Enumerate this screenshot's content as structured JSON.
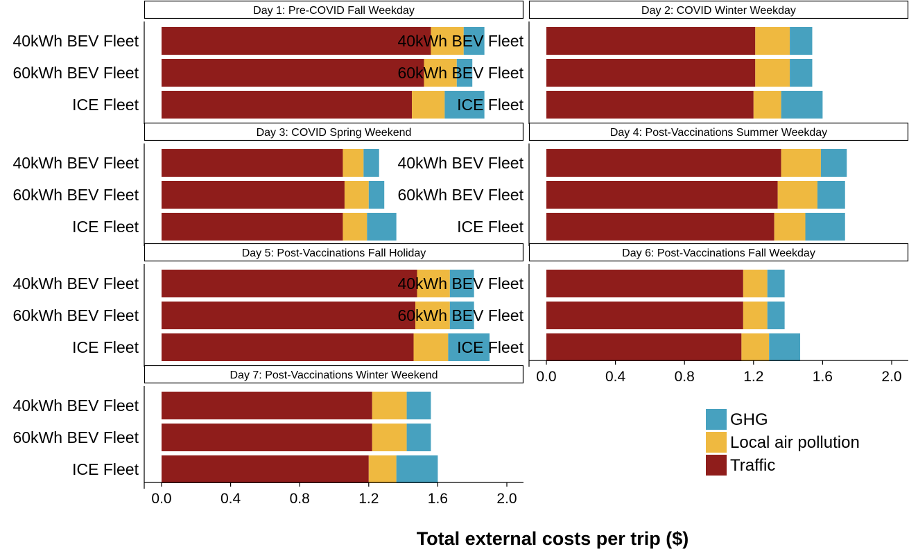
{
  "chart_data": {
    "type": "bar",
    "orientation": "horizontal",
    "stacked": true,
    "xlabel": "Total external costs per trip ($)",
    "xlim": [
      0,
      2.0
    ],
    "xticks": [
      "0.0",
      "0.4",
      "0.8",
      "1.2",
      "1.6",
      "2.0"
    ],
    "categories": [
      "40kWh BEV Fleet",
      "60kWh BEV Fleet",
      "ICE Fleet"
    ],
    "series_order": [
      "Traffic",
      "Local air pollution",
      "GHG"
    ],
    "colors": {
      "Traffic": "#8f1d1b",
      "Local air pollution": "#efb940",
      "GHG": "#47a1bf"
    },
    "legend": {
      "position": "bottom-right",
      "items": [
        "GHG",
        "Local air pollution",
        "Traffic"
      ]
    },
    "panels": [
      {
        "title": "Day 1: Pre-COVID Fall Weekday",
        "values": {
          "Traffic": [
            1.56,
            1.52,
            1.45
          ],
          "Local air pollution": [
            0.19,
            0.19,
            0.19
          ],
          "GHG": [
            0.12,
            0.09,
            0.23
          ]
        }
      },
      {
        "title": "Day 2: COVID Winter Weekday",
        "values": {
          "Traffic": [
            1.21,
            1.21,
            1.2
          ],
          "Local air pollution": [
            0.2,
            0.2,
            0.16
          ],
          "GHG": [
            0.13,
            0.13,
            0.24
          ]
        }
      },
      {
        "title": "Day 3: COVID Spring Weekend",
        "values": {
          "Traffic": [
            1.05,
            1.06,
            1.05
          ],
          "Local air pollution": [
            0.12,
            0.14,
            0.14
          ],
          "GHG": [
            0.09,
            0.09,
            0.17
          ]
        }
      },
      {
        "title": "Day 4: Post-Vaccinations Summer Weekday",
        "values": {
          "Traffic": [
            1.36,
            1.34,
            1.32
          ],
          "Local air pollution": [
            0.23,
            0.23,
            0.18
          ],
          "GHG": [
            0.15,
            0.16,
            0.23
          ]
        }
      },
      {
        "title": "Day 5: Post-Vaccinations Fall Holiday",
        "values": {
          "Traffic": [
            1.48,
            1.47,
            1.46
          ],
          "Local air pollution": [
            0.19,
            0.2,
            0.2
          ],
          "GHG": [
            0.14,
            0.14,
            0.24
          ]
        }
      },
      {
        "title": "Day 6: Post-Vaccinations Fall Weekday",
        "values": {
          "Traffic": [
            1.14,
            1.14,
            1.13
          ],
          "Local air pollution": [
            0.14,
            0.14,
            0.16
          ],
          "GHG": [
            0.1,
            0.1,
            0.18
          ]
        }
      },
      {
        "title": "Day 7: Post-Vaccinations Winter Weekend",
        "values": {
          "Traffic": [
            1.22,
            1.22,
            1.2
          ],
          "Local air pollution": [
            0.2,
            0.2,
            0.16
          ],
          "GHG": [
            0.14,
            0.14,
            0.24
          ]
        }
      }
    ]
  }
}
